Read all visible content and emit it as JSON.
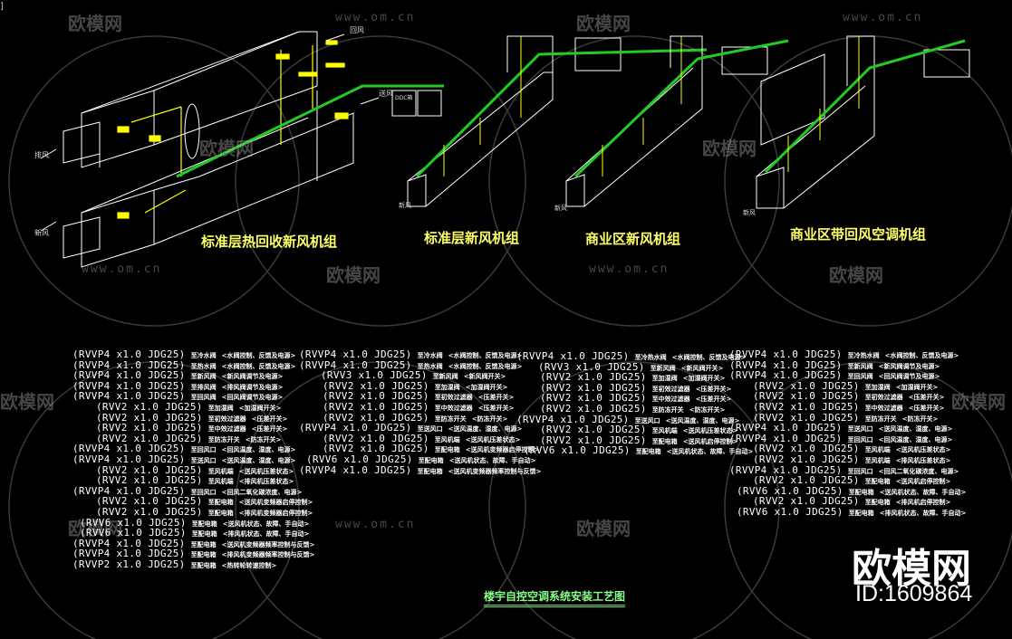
{
  "corner_mark": "]",
  "colors": {
    "background": "#000000",
    "equipment": "#ffffff",
    "sensor": "#ffff00",
    "cable": "#22cc22",
    "title": "#ffff66",
    "drawing_title": "#88ff88"
  },
  "watermark": {
    "logo": "欧模网",
    "url": "www.om.cn"
  },
  "units": [
    {
      "title": "标准层热回收新风机组",
      "labels": {
        "return_air": "回风",
        "supply_air": "送风",
        "exhaust_air": "排风",
        "fresh_air": "新风",
        "panel": "DDC箱"
      }
    },
    {
      "title": "标准层新风机组",
      "labels": {
        "fresh_air": "新风"
      }
    },
    {
      "title": "商业区新风机组",
      "labels": {
        "fresh_air": "新风"
      }
    },
    {
      "title": "商业区带回风空调机组",
      "labels": {
        "fresh_air": "新风"
      }
    }
  ],
  "cable_lists": [
    [
      {
        "spec": "(RVVP4 x1.0 JDG25)",
        "dest": "至冷水阀",
        "desc": "<水阀控制、反馈及电源>"
      },
      {
        "spec": "(RVVP4 x1.0 JDG25)",
        "dest": "至热水阀",
        "desc": "<水阀控制、反馈及电源>"
      },
      {
        "spec": "(RVVP4 x1.0 JDG25)",
        "dest": "至新风阀",
        "desc": "<新风阀调节及电源>"
      },
      {
        "spec": "(RVVP4 x1.0 JDG25)",
        "dest": "至排风阀",
        "desc": "<排风阀调节及电源>"
      },
      {
        "spec": "(RVVP4 x1.0 JDG25)",
        "dest": "至回风阀",
        "desc": "<回风阀调节及电源>"
      },
      {
        "spec": "(RVV2 x1.0 JDG25)",
        "dest": "至加湿阀",
        "desc": "<加湿阀开关>"
      },
      {
        "spec": "(RVV2 x1.0 JDG25)",
        "dest": "至初效过滤器",
        "desc": "<压差开关>"
      },
      {
        "spec": "(RVV2 x1.0 JDG25)",
        "dest": "至中效过滤器",
        "desc": "<压差开关>"
      },
      {
        "spec": "(RVV2 x1.0 JDG25)",
        "dest": "至防冻开关",
        "desc": "<防冻开关>"
      },
      {
        "spec": "(RVVP4 x1.0 JDG25)",
        "dest": "至回风口",
        "desc": "<回风温度、湿度、电源>"
      },
      {
        "spec": "(RVVP4 x1.0 JDG25)",
        "dest": "至送风口",
        "desc": "<送风温度、湿度、电源>"
      },
      {
        "spec": "(RVV2 x1.0 JDG25)",
        "dest": "至风机端",
        "desc": "<送风机压差状态>"
      },
      {
        "spec": "(RVV2 x1.0 JDG25)",
        "dest": "至风机端",
        "desc": "<排风机压差状态>"
      },
      {
        "spec": "(RVVP4 x1.0 JDG25)",
        "dest": "至回风口",
        "desc": "<回风二氧化碳浓度、电源>"
      },
      {
        "spec": "(RVV2 x1.0 JDG25)",
        "dest": "至配电箱",
        "desc": "<送风机变频器启停控制>"
      },
      {
        "spec": "(RVV2 x1.0 JDG25)",
        "dest": "至配电箱",
        "desc": "<排风机变频器启停控制>"
      },
      {
        "spec": "(RVV6 x1.0 JDG25)",
        "dest": "至配电箱",
        "desc": "<送风机状态、故障、手自动>"
      },
      {
        "spec": "(RVV6 x1.0 JDG25)",
        "dest": "至配电箱",
        "desc": "<排风机状态、故障、手自动>"
      },
      {
        "spec": "(RVVP4 x1.0 JDG25)",
        "dest": "至配电箱",
        "desc": "<送风机变频器频率控制与反馈>"
      },
      {
        "spec": "(RVVP4 x1.0 JDG25)",
        "dest": "至配电箱",
        "desc": "<排风机变频器频率控制与反馈>"
      },
      {
        "spec": "(RVVP2 x1.0 JDG25)",
        "dest": "至配电箱",
        "desc": "<热转轮转速控制>"
      }
    ],
    [
      {
        "spec": "(RVVP4 x1.0 JDG25)",
        "dest": "至冷水阀",
        "desc": "<水阀控制、反馈及电源>"
      },
      {
        "spec": "(RVVP4 x1.0 JDG25)",
        "dest": "至热水阀",
        "desc": "<水阀控制、反馈及电源>"
      },
      {
        "spec": "(RVV3 x1.0 JDG25)",
        "dest": "至新风阀",
        "desc": "<新风阀开关>"
      },
      {
        "spec": "(RVV2 x1.0 JDG25)",
        "dest": "至加湿阀",
        "desc": "<加湿阀开关>"
      },
      {
        "spec": "(RVV2 x1.0 JDG25)",
        "dest": "至初效过滤器",
        "desc": "<压差开关>"
      },
      {
        "spec": "(RVV2 x1.0 JDG25)",
        "dest": "至中效过滤器",
        "desc": "<压差开关>"
      },
      {
        "spec": "(RVV2 x1.0 JDG25)",
        "dest": "至防冻开关",
        "desc": "<防冻开关>"
      },
      {
        "spec": "(RVVP4 x1.0 JDG25)",
        "dest": "至送风口",
        "desc": "<送风温度、湿度、电源>"
      },
      {
        "spec": "(RVV2 x1.0 JDG25)",
        "dest": "至风机端",
        "desc": "<送风机压差状态>"
      },
      {
        "spec": "(RVV2 x1.0 JDG25)",
        "dest": "至配电箱",
        "desc": "<送风机变频器启停控制>"
      },
      {
        "spec": "(RVV6 x1.0 JDG25)",
        "dest": "至配电箱",
        "desc": "<送风机状态、故障、手自动>"
      },
      {
        "spec": "(RVVP4 x1.0 JDG25)",
        "dest": "至配电箱",
        "desc": "<送风机变频器频率控制与反馈>"
      }
    ],
    [
      {
        "spec": "(RVVP4 x1.0 JDG25)",
        "dest": "至冷热水阀",
        "desc": "<水阀控制、反馈及电源>"
      },
      {
        "spec": "(RVV3 x1.0 JDG25)",
        "dest": "至新风阀",
        "desc": "<新风阀开关>"
      },
      {
        "spec": "(RVV2 x1.0 JDG25)",
        "dest": "至加湿阀",
        "desc": "<加湿阀开关>"
      },
      {
        "spec": "(RVV2 x1.0 JDG25)",
        "dest": "至初效过滤器",
        "desc": "<压差开关>"
      },
      {
        "spec": "(RVV2 x1.0 JDG25)",
        "dest": "至中效过滤器",
        "desc": "<压差开关>"
      },
      {
        "spec": "(RVV2 x1.0 JDG25)",
        "dest": "至防冻开关",
        "desc": "<防冻开关>"
      },
      {
        "spec": "(RVVP4 x1.0 JDG25)",
        "dest": "至送风口",
        "desc": "<送风温度、湿度、电源>"
      },
      {
        "spec": "(RVV2 x1.0 JDG25)",
        "dest": "至风机端",
        "desc": "<送风机压差状态>"
      },
      {
        "spec": "(RVV2 x1.0 JDG25)",
        "dest": "至配电箱",
        "desc": "<送风机启停控制>"
      },
      {
        "spec": "(RVV6 x1.0 JDG25)",
        "dest": "至配电箱",
        "desc": "<送风机状态、故障、手自动>"
      }
    ],
    [
      {
        "spec": "(RVVP4 x1.0 JDG25)",
        "dest": "至冷热水阀",
        "desc": "<水阀控制、反馈及电源>"
      },
      {
        "spec": "(RVVP4 x1.0 JDG25)",
        "dest": "至新风阀",
        "desc": "<新风阀调节及电源>"
      },
      {
        "spec": "(RVVP4 x1.0 JDG25)",
        "dest": "至回风阀",
        "desc": "<回风阀调节及电源>"
      },
      {
        "spec": "(RVV2 x1.0 JDG25)",
        "dest": "至加湿阀",
        "desc": "<加湿阀开关>"
      },
      {
        "spec": "(RVV2 x1.0 JDG25)",
        "dest": "至初效过滤器",
        "desc": "<压差开关>"
      },
      {
        "spec": "(RVV2 x1.0 JDG25)",
        "dest": "至中效过滤器",
        "desc": "<压差开关>"
      },
      {
        "spec": "(RVV2 x1.0 JDG25)",
        "dest": "至防冻开关",
        "desc": "<防冻开关>"
      },
      {
        "spec": "(RVVP4 x1.0 JDG25)",
        "dest": "至送风口",
        "desc": "<送风温度、湿度、电源>"
      },
      {
        "spec": "(RVVP4 x1.0 JDG25)",
        "dest": "至回风口",
        "desc": "<回风温度、湿度、电源>"
      },
      {
        "spec": "(RVV2 x1.0 JDG25)",
        "dest": "至风机端",
        "desc": "<送风机压差状态>"
      },
      {
        "spec": "(RVV2 x1.0 JDG25)",
        "dest": "至风机端",
        "desc": "<排风机压差状态>"
      },
      {
        "spec": "(RVVP4 x1.0 JDG25)",
        "dest": "至回风口",
        "desc": "<回风二氧化碳浓度、电源>"
      },
      {
        "spec": "(RVV2 x1.0 JDG25)",
        "dest": "至配电箱",
        "desc": "<送风机启停控制>"
      },
      {
        "spec": "(RVV6 x1.0 JDG25)",
        "dest": "至配电箱",
        "desc": "<送风机状态、故障、手自动>"
      },
      {
        "spec": "(RVV2 x1.0 JDG25)",
        "dest": "至配电箱",
        "desc": "<排风机启停控制>"
      },
      {
        "spec": "(RVV6 x1.0 JDG25)",
        "dest": "至配电箱",
        "desc": "<排风机状态、故障、手自动>"
      }
    ]
  ],
  "drawing_title": "楼宇自控空调系统安装工艺图",
  "brand": {
    "logo": "欧模网",
    "id": "ID:1609864"
  }
}
